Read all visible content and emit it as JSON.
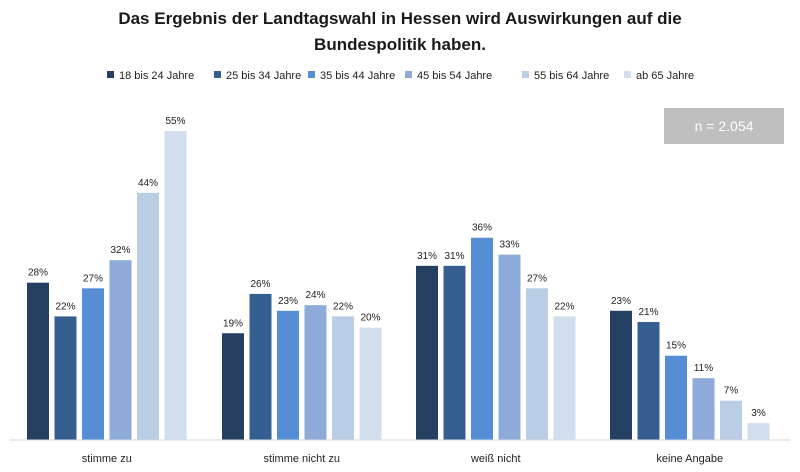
{
  "chart_data": {
    "type": "bar",
    "title_lines": [
      "Das Ergebnis der Landtagswahl in Hessen wird Auswirkungen auf die",
      "Bundespolitik haben."
    ],
    "categories": [
      "stimme zu",
      "stimme nicht zu",
      "weiß nicht",
      "keine Angabe"
    ],
    "series": [
      {
        "name": "18 bis 24 Jahre",
        "color": "#243f60",
        "values": [
          28,
          19,
          31,
          23
        ]
      },
      {
        "name": "25 bis 34 Jahre",
        "color": "#365f91",
        "values": [
          22,
          26,
          31,
          21
        ]
      },
      {
        "name": "35 bis 44 Jahre",
        "color": "#558ed5",
        "values": [
          27,
          23,
          36,
          15
        ]
      },
      {
        "name": "45 bis 54 Jahre",
        "color": "#8eaad8",
        "values": [
          32,
          24,
          33,
          11
        ]
      },
      {
        "name": "55 bis 64 Jahre",
        "color": "#b9cde5",
        "values": [
          44,
          22,
          27,
          7
        ]
      },
      {
        "name": "ab 65 Jahre",
        "color": "#d2deed",
        "values": [
          55,
          20,
          22,
          3
        ]
      }
    ],
    "value_suffix": "%",
    "ylim": [
      0,
      55
    ],
    "grid": false,
    "legend_position": "top",
    "sample_note": "n = 2.054"
  }
}
